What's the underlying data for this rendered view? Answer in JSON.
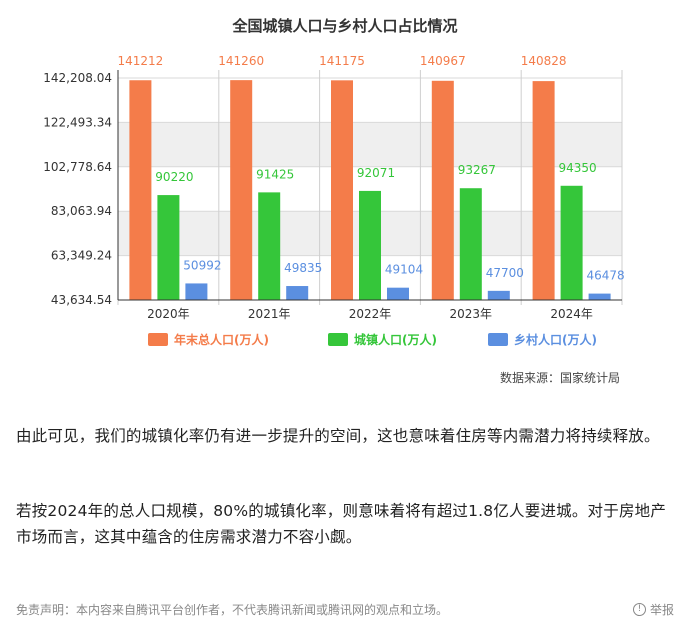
{
  "chart_data": {
    "type": "bar",
    "title": "全国城镇人口与乡村人口占比情况",
    "categories": [
      "2020年",
      "2021年",
      "2022年",
      "2023年",
      "2024年"
    ],
    "series": [
      {
        "name": "年末总人口(万人)",
        "color": "#f47c4a",
        "values": [
          141212,
          141260,
          141175,
          140967,
          140828
        ]
      },
      {
        "name": "城镇人口(万人)",
        "color": "#35c63a",
        "values": [
          90220,
          91425,
          92071,
          93267,
          94350
        ]
      },
      {
        "name": "乡村人口(万人)",
        "color": "#5b8fe0",
        "values": [
          50992,
          49835,
          49104,
          47700,
          46478
        ]
      }
    ],
    "yticks": [
      "43,634.54",
      "63,349.24",
      "83,063.94",
      "102,778.64",
      "122,493.34",
      "142,208.04"
    ],
    "ylim": [
      43634.54,
      142208.04
    ],
    "grid": true,
    "legend_position": "bottom",
    "source": "数据来源：国家统计局"
  },
  "article": {
    "paragraph1": "由此可见，我们的城镇化率仍有进一步提升的空间，这也意味着住房等内需潜力将持续释放。",
    "paragraph2": "若按2024年的总人口规模，80%的城镇化率，则意味着将有超过1.8亿人要进城。对于房地产市场而言，这其中蕴含的住房需求潜力不容小觑。"
  },
  "footer": {
    "disclaimer": "免责声明：本内容来自腾讯平台创作者，不代表腾讯新闻或腾讯网的观点和立场。",
    "report_label": "举报",
    "report_icon": "alert-circle-icon"
  }
}
